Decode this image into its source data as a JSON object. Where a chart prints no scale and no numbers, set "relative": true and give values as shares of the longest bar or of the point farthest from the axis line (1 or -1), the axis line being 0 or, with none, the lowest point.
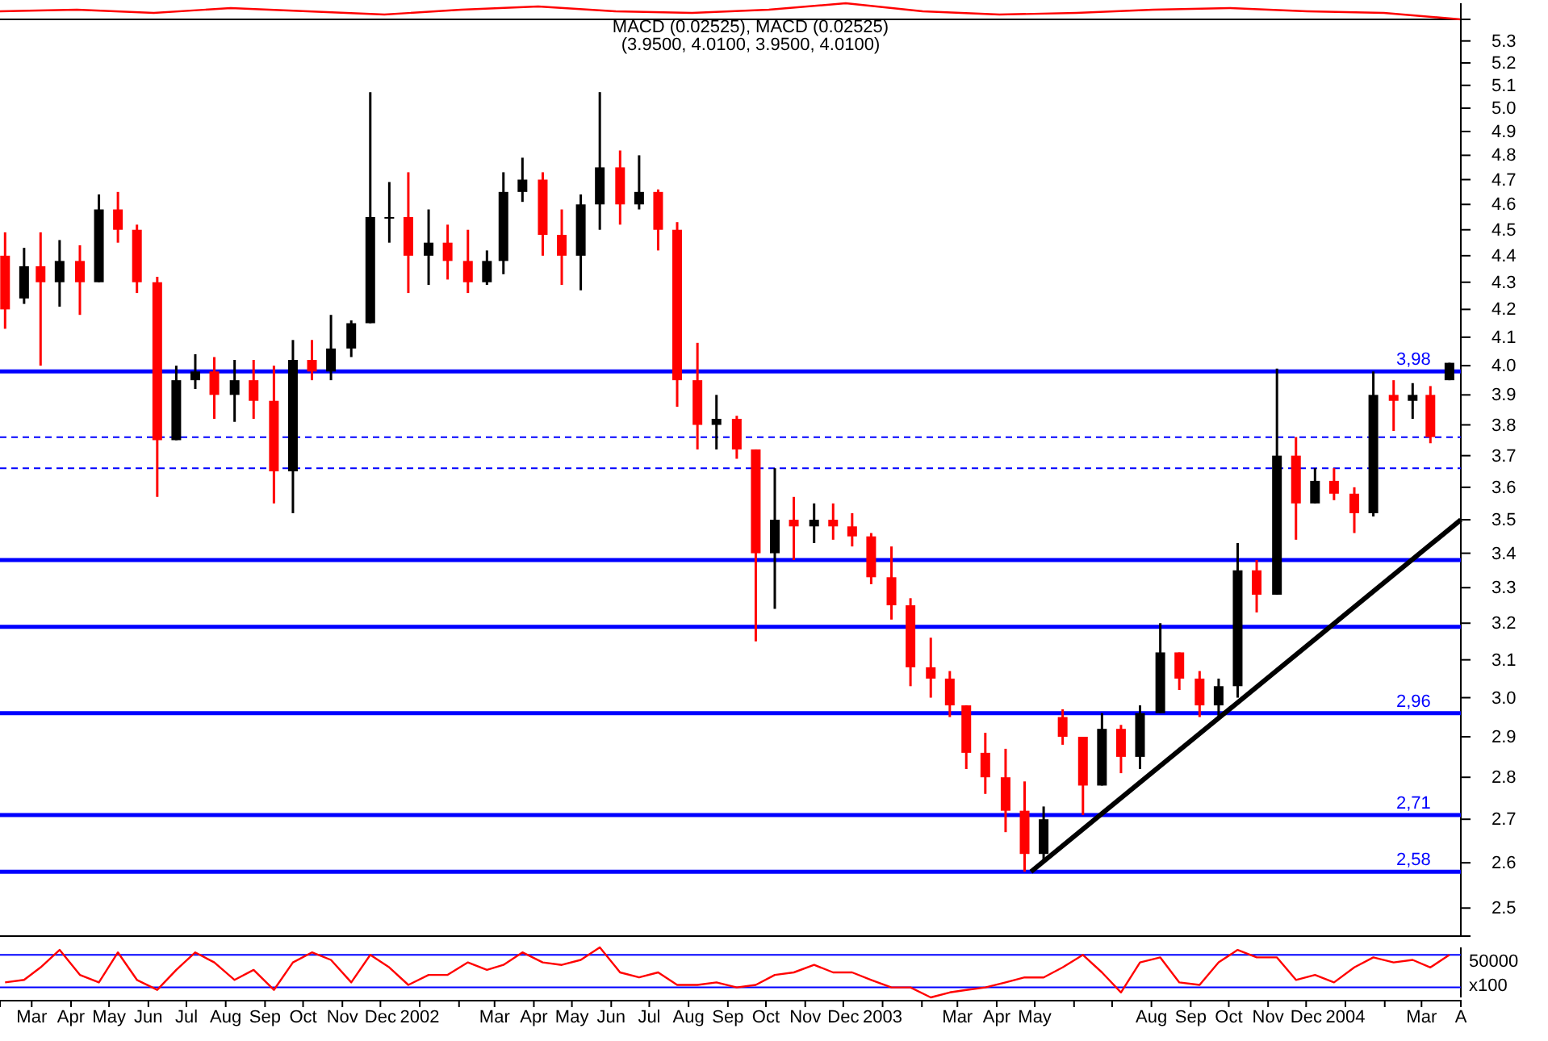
{
  "chart_data": [
    {
      "type": "line",
      "relative": true,
      "categories": [
        null,
        null,
        null,
        null,
        null,
        null,
        null,
        null,
        null,
        null,
        null,
        null,
        null,
        null,
        null,
        null,
        null,
        null,
        null,
        null
      ],
      "series": [
        {
          "color": "#ff0000",
          "values": [
            0.5,
            0.6,
            0.4,
            0.7,
            0.5,
            0.3,
            0.6,
            0.8,
            0.5,
            0.4,
            0.6,
            1,
            0.5,
            0.3,
            0.4,
            0.6,
            0.7,
            0.5,
            0.4,
            0
          ]
        }
      ]
    },
    {
      "type": "candlestick",
      "title": "MACD (0.02525), MACD (0.02525)",
      "subtitle": "(3.9500, 4.0100, 3.9500, 4.0100)",
      "log": true,
      "tick_labels": "y",
      "xlim": [
        "2001-02-04",
        "2004-04-01"
      ],
      "ylim": [
        2.44,
        5.4
      ],
      "yticks": [
        2.5,
        2.6,
        2.7,
        2.8,
        2.9,
        {
          "value": 3,
          "label": "3.0"
        },
        3.1,
        3.2,
        3.3,
        3.4,
        3.5,
        3.6,
        3.7,
        3.8,
        3.9,
        {
          "value": 4,
          "label": "4.0"
        },
        4.1,
        4.2,
        4.3,
        4.4,
        4.5,
        4.6,
        4.7,
        4.8,
        4.9,
        {
          "value": 5,
          "label": "5.0"
        },
        5.1,
        5.2,
        5.3
      ],
      "x": [
        "2001-02-08",
        "2001-02-23",
        "2001-03-08",
        "2001-03-23",
        "2001-04-08",
        "2001-04-23",
        "2001-05-08",
        "2001-05-23",
        "2001-06-08",
        "2001-06-23",
        "2001-07-08",
        "2001-07-23",
        "2001-08-08",
        "2001-08-23",
        "2001-09-08",
        "2001-09-23",
        "2001-10-08",
        "2001-10-23",
        "2001-11-08",
        "2001-11-23",
        "2001-12-08",
        "2001-12-23",
        "2002-01-08",
        "2002-01-23",
        "2002-02-08",
        "2002-02-23",
        "2002-03-08",
        "2002-03-23",
        "2002-04-08",
        "2002-04-23",
        "2002-05-08",
        "2002-05-23",
        "2002-06-08",
        "2002-06-23",
        "2002-07-08",
        "2002-07-23",
        "2002-08-08",
        "2002-08-23",
        "2002-09-08",
        "2002-09-23",
        "2002-10-08",
        "2002-10-23",
        "2002-11-08",
        "2002-11-23",
        "2002-12-08",
        "2002-12-23",
        "2003-01-08",
        "2003-01-23",
        "2003-02-08",
        "2003-02-23",
        "2003-03-08",
        "2003-03-23",
        "2003-04-08",
        "2003-04-23",
        "2003-05-08",
        "2003-05-23",
        "2003-06-08",
        "2003-06-23",
        "2003-07-08",
        "2003-07-23",
        "2003-08-08",
        "2003-08-23",
        "2003-09-08",
        "2003-09-23",
        "2003-10-08",
        "2003-10-23",
        "2003-11-08",
        "2003-11-23",
        "2003-12-08",
        "2003-12-23",
        "2004-01-08",
        "2004-01-23",
        "2004-02-08",
        "2004-02-23",
        "2004-03-08",
        "2004-03-23"
      ],
      "ohlc": [
        [
          4.4,
          4.49,
          4.13,
          4.2
        ],
        [
          4.24,
          4.43,
          4.22,
          4.36
        ],
        [
          4.36,
          4.49,
          4.0,
          4.3
        ],
        [
          4.3,
          4.46,
          4.21,
          4.38
        ],
        [
          4.38,
          4.44,
          4.18,
          4.3
        ],
        [
          4.3,
          4.64,
          4.3,
          4.58
        ],
        [
          4.58,
          4.65,
          4.45,
          4.5
        ],
        [
          4.5,
          4.52,
          4.26,
          4.3
        ],
        [
          4.3,
          4.32,
          3.57,
          3.75
        ],
        [
          3.75,
          4.0,
          3.75,
          3.95
        ],
        [
          3.95,
          4.04,
          3.92,
          3.98
        ],
        [
          3.98,
          4.03,
          3.82,
          3.9
        ],
        [
          3.9,
          4.02,
          3.81,
          3.95
        ],
        [
          3.95,
          4.02,
          3.82,
          3.88
        ],
        [
          3.88,
          4.0,
          3.55,
          3.65
        ],
        [
          3.65,
          4.09,
          3.52,
          4.02
        ],
        [
          4.02,
          4.09,
          3.95,
          3.98
        ],
        [
          3.98,
          4.18,
          3.95,
          4.06
        ],
        [
          4.06,
          4.16,
          4.03,
          4.15
        ],
        [
          4.15,
          5.07,
          4.15,
          4.55
        ],
        [
          4.55,
          4.69,
          4.45,
          4.55
        ],
        [
          4.55,
          4.73,
          4.26,
          4.4
        ],
        [
          4.4,
          4.58,
          4.29,
          4.45
        ],
        [
          4.45,
          4.52,
          4.31,
          4.38
        ],
        [
          4.38,
          4.5,
          4.26,
          4.3
        ],
        [
          4.3,
          4.42,
          4.29,
          4.38
        ],
        [
          4.38,
          4.73,
          4.33,
          4.65
        ],
        [
          4.65,
          4.79,
          4.61,
          4.7
        ],
        [
          4.7,
          4.73,
          4.4,
          4.48
        ],
        [
          4.48,
          4.58,
          4.29,
          4.4
        ],
        [
          4.4,
          4.64,
          4.27,
          4.6
        ],
        [
          4.6,
          5.07,
          4.5,
          4.75
        ],
        [
          4.75,
          4.82,
          4.52,
          4.6
        ],
        [
          4.6,
          4.8,
          4.58,
          4.65
        ],
        [
          4.65,
          4.66,
          4.42,
          4.5
        ],
        [
          4.5,
          4.53,
          3.86,
          3.95
        ],
        [
          3.95,
          4.08,
          3.72,
          3.8
        ],
        [
          3.8,
          3.9,
          3.72,
          3.82
        ],
        [
          3.82,
          3.83,
          3.69,
          3.72
        ],
        [
          3.72,
          3.72,
          3.15,
          3.4
        ],
        [
          3.4,
          3.66,
          3.24,
          3.5
        ],
        [
          3.5,
          3.57,
          3.38,
          3.48
        ],
        [
          3.48,
          3.55,
          3.43,
          3.5
        ],
        [
          3.5,
          3.55,
          3.44,
          3.48
        ],
        [
          3.48,
          3.52,
          3.42,
          3.45
        ],
        [
          3.45,
          3.46,
          3.31,
          3.33
        ],
        [
          3.33,
          3.42,
          3.21,
          3.25
        ],
        [
          3.25,
          3.27,
          3.03,
          3.08
        ],
        [
          3.08,
          3.16,
          3.0,
          3.05
        ],
        [
          3.05,
          3.07,
          2.95,
          2.98
        ],
        [
          2.98,
          2.98,
          2.82,
          2.86
        ],
        [
          2.86,
          2.91,
          2.76,
          2.8
        ],
        [
          2.8,
          2.87,
          2.67,
          2.72
        ],
        [
          2.72,
          2.79,
          2.58,
          2.62
        ],
        [
          2.62,
          2.73,
          2.6,
          2.7
        ],
        [
          2.95,
          2.97,
          2.88,
          2.9
        ],
        [
          2.9,
          2.9,
          2.71,
          2.78
        ],
        [
          2.78,
          2.96,
          2.78,
          2.92
        ],
        [
          2.92,
          2.93,
          2.81,
          2.85
        ],
        [
          2.85,
          2.98,
          2.82,
          2.96
        ],
        [
          2.96,
          3.2,
          2.96,
          3.12
        ],
        [
          3.12,
          3.12,
          3.02,
          3.05
        ],
        [
          3.05,
          3.07,
          2.95,
          2.98
        ],
        [
          2.98,
          3.05,
          2.95,
          3.03
        ],
        [
          3.03,
          3.43,
          3.0,
          3.35
        ],
        [
          3.35,
          3.38,
          3.23,
          3.28
        ],
        [
          3.28,
          3.99,
          3.28,
          3.7
        ],
        [
          3.7,
          3.76,
          3.44,
          3.55
        ],
        [
          3.55,
          3.66,
          3.55,
          3.62
        ],
        [
          3.62,
          3.66,
          3.56,
          3.58
        ],
        [
          3.58,
          3.6,
          3.46,
          3.52
        ],
        [
          3.52,
          3.98,
          3.51,
          3.9
        ],
        [
          3.9,
          3.95,
          3.78,
          3.88
        ],
        [
          3.88,
          3.94,
          3.82,
          3.9
        ],
        [
          3.9,
          3.93,
          3.74,
          3.76
        ],
        [
          3.95,
          4.01,
          3.95,
          4.01
        ]
      ],
      "colors": [
        "#ff0000",
        "#000000",
        "#ff0000",
        "#000000",
        "#ff0000",
        "#000000",
        "#ff0000",
        "#ff0000",
        "#ff0000",
        "#000000",
        "#000000",
        "#ff0000",
        "#000000",
        "#ff0000",
        "#ff0000",
        "#000000",
        "#ff0000",
        "#000000",
        "#000000",
        "#000000",
        "#000000",
        "#ff0000",
        "#000000",
        "#ff0000",
        "#ff0000",
        "#000000",
        "#000000",
        "#000000",
        "#ff0000",
        "#ff0000",
        "#000000",
        "#000000",
        "#ff0000",
        "#000000",
        "#ff0000",
        "#ff0000",
        "#ff0000",
        "#000000",
        "#ff0000",
        "#ff0000",
        "#000000",
        "#ff0000",
        "#000000",
        "#ff0000",
        "#ff0000",
        "#ff0000",
        "#ff0000",
        "#ff0000",
        "#ff0000",
        "#ff0000",
        "#ff0000",
        "#ff0000",
        "#ff0000",
        "#ff0000",
        "#000000",
        "#ff0000",
        "#ff0000",
        "#000000",
        "#ff0000",
        "#000000",
        "#000000",
        "#ff0000",
        "#ff0000",
        "#000000",
        "#000000",
        "#ff0000",
        "#000000",
        "#ff0000",
        "#000000",
        "#ff0000",
        "#ff0000",
        "#000000",
        "#ff0000",
        "#000000",
        "#ff0000",
        "#000000"
      ],
      "series": [
        {
          "type": "line",
          "color": "#000000",
          "x": [
            "2003-04-28",
            "2004-04-01"
          ],
          "values": [
            2.58,
            3.5
          ]
        }
      ],
      "ref_lines": [
        {
          "axis": "y",
          "value": 3.98,
          "color": "#0000ff",
          "line_style": "solid",
          "label": "3,98"
        },
        {
          "axis": "y",
          "value": 3.19,
          "color": "#0000ff",
          "line_style": "solid"
        },
        {
          "axis": "y",
          "value": 2.96,
          "color": "#0000ff",
          "line_style": "solid",
          "label": "2,96"
        },
        {
          "axis": "y",
          "value": 2.58,
          "color": "#0000ff",
          "line_style": "solid",
          "label": "2,58"
        },
        {
          "axis": "y",
          "value": 3.38,
          "color": "#0000ff",
          "line_style": "solid"
        },
        {
          "axis": "y",
          "value": 2.71,
          "color": "#0000ff",
          "line_style": "solid",
          "label": "2,71"
        },
        {
          "axis": "y",
          "value": 3.76,
          "color": "#0000ff",
          "line_style": "dashed"
        },
        {
          "axis": "y",
          "value": 3.66,
          "color": "#0000ff",
          "line_style": "dashed"
        }
      ]
    },
    {
      "type": "line",
      "relative": true,
      "xlim": [
        "2001-02-04",
        "2004-04-01"
      ],
      "xticks": [
        {
          "value": "2001-03-01",
          "label": "Mar"
        },
        {
          "value": "2001-04-01",
          "label": "Apr"
        },
        {
          "value": "2001-05-01",
          "label": "May"
        },
        {
          "value": "2001-06-01",
          "label": "Jun"
        },
        {
          "value": "2001-07-01",
          "label": "Jul"
        },
        {
          "value": "2001-08-01",
          "label": "Aug"
        },
        {
          "value": "2001-09-01",
          "label": "Sep"
        },
        {
          "value": "2001-10-01",
          "label": "Oct"
        },
        {
          "value": "2001-11-01",
          "label": "Nov"
        },
        {
          "value": "2001-12-01",
          "label": "Dec"
        },
        {
          "value": "2002-01-01",
          "label": "2002"
        },
        {
          "value": "2002-02-01",
          "label": null
        },
        {
          "value": "2002-03-01",
          "label": "Mar"
        },
        {
          "value": "2002-04-01",
          "label": "Apr"
        },
        {
          "value": "2002-05-01",
          "label": "May"
        },
        {
          "value": "2002-06-01",
          "label": "Jun"
        },
        {
          "value": "2002-07-01",
          "label": "Jul"
        },
        {
          "value": "2002-08-01",
          "label": "Aug"
        },
        {
          "value": "2002-09-01",
          "label": "Sep"
        },
        {
          "value": "2002-10-01",
          "label": "Oct"
        },
        {
          "value": "2002-11-01",
          "label": "Nov"
        },
        {
          "value": "2002-12-01",
          "label": "Dec"
        },
        {
          "value": "2003-01-01",
          "label": "2003"
        },
        {
          "value": "2003-02-01",
          "label": null
        },
        {
          "value": "2003-03-01",
          "label": "Mar"
        },
        {
          "value": "2003-04-01",
          "label": "Apr"
        },
        {
          "value": "2003-05-01",
          "label": "May"
        },
        {
          "value": "2003-06-01",
          "label": null
        },
        {
          "value": "2003-07-01",
          "label": null
        },
        {
          "value": "2003-08-01",
          "label": "Aug"
        },
        {
          "value": "2003-09-01",
          "label": "Sep"
        },
        {
          "value": "2003-10-01",
          "label": "Oct"
        },
        {
          "value": "2003-11-01",
          "label": "Nov"
        },
        {
          "value": "2003-12-01",
          "label": "Dec"
        },
        {
          "value": "2004-01-01",
          "label": "2004"
        },
        {
          "value": "2004-02-01",
          "label": null
        },
        {
          "value": "2004-03-01",
          "label": "Mar"
        },
        {
          "value": "2004-04-01",
          "label": "A"
        }
      ],
      "x": [
        "2001-02-08",
        "2001-02-23",
        "2001-03-08",
        "2001-03-23",
        "2001-04-08",
        "2001-04-23",
        "2001-05-08",
        "2001-05-23",
        "2001-06-08",
        "2001-06-23",
        "2001-07-08",
        "2001-07-23",
        "2001-08-08",
        "2001-08-23",
        "2001-09-08",
        "2001-09-23",
        "2001-10-08",
        "2001-10-23",
        "2001-11-08",
        "2001-11-23",
        "2001-12-08",
        "2001-12-23",
        "2002-01-08",
        "2002-01-23",
        "2002-02-08",
        "2002-02-23",
        "2002-03-08",
        "2002-03-23",
        "2002-04-08",
        "2002-04-23",
        "2002-05-08",
        "2002-05-23",
        "2002-06-08",
        "2002-06-23",
        "2002-07-08",
        "2002-07-23",
        "2002-08-08",
        "2002-08-23",
        "2002-09-08",
        "2002-09-23",
        "2002-10-08",
        "2002-10-23",
        "2002-11-08",
        "2002-11-23",
        "2002-12-08",
        "2002-12-23",
        "2003-01-08",
        "2003-01-23",
        "2003-02-08",
        "2003-02-23",
        "2003-03-08",
        "2003-03-23",
        "2003-04-08",
        "2003-04-23",
        "2003-05-08",
        "2003-05-23",
        "2003-06-08",
        "2003-06-23",
        "2003-07-08",
        "2003-07-23",
        "2003-08-08",
        "2003-08-23",
        "2003-09-08",
        "2003-09-23",
        "2003-10-08",
        "2003-10-23",
        "2003-11-08",
        "2003-11-23",
        "2003-12-08",
        "2003-12-23",
        "2004-01-08",
        "2004-01-23",
        "2004-02-08",
        "2004-02-23",
        "2004-03-08",
        "2004-03-23"
      ],
      "series": [
        {
          "color": "#ff0000",
          "values": [
            0.3,
            0.35,
            0.6,
            0.95,
            0.45,
            0.3,
            0.9,
            0.35,
            0.15,
            0.55,
            0.9,
            0.7,
            0.35,
            0.55,
            0.15,
            0.7,
            0.9,
            0.75,
            0.3,
            0.85,
            0.6,
            0.25,
            0.45,
            0.45,
            0.7,
            0.55,
            0.65,
            0.9,
            0.7,
            0.65,
            0.75,
            1,
            0.5,
            0.4,
            0.5,
            0.25,
            0.25,
            0.3,
            0.2,
            0.25,
            0.45,
            0.5,
            0.65,
            0.5,
            0.5,
            0.35,
            0.2,
            0.2,
            0,
            0.1,
            0.15,
            0.2,
            0.3,
            0.4,
            0.4,
            0.6,
            0.85,
            0.5,
            0.1,
            0.7,
            0.8,
            0.3,
            0.25,
            0.7,
            0.95,
            0.8,
            0.8,
            0.35,
            0.45,
            0.3,
            0.6,
            0.8,
            0.7,
            0.75,
            0.6,
            0.85
          ]
        }
      ],
      "ref_lines": [
        {
          "axis": "y",
          "value": 0.85,
          "color": "#0000ff"
        },
        {
          "axis": "y",
          "value": 0.2,
          "color": "#0000ff"
        }
      ],
      "annotations": [
        "50000",
        "x100"
      ]
    }
  ]
}
